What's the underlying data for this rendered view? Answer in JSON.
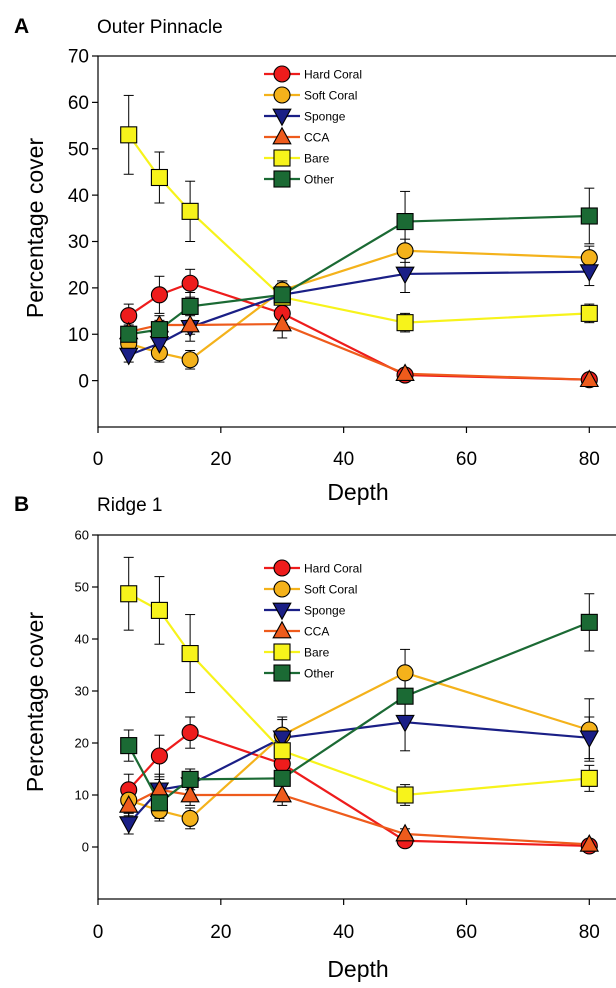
{
  "figure": {
    "panels": [
      {
        "letter": "A",
        "subtitle": "Outer Pinnacle"
      },
      {
        "letter": "B",
        "subtitle": "Ridge 1"
      }
    ]
  },
  "chart_data": [
    {
      "type": "line",
      "panel_label": "A",
      "title": "Outer Pinnacle",
      "xlabel": "Depth",
      "ylabel": "Percentage cover",
      "xlim": [
        0,
        85
      ],
      "ylim": [
        -10,
        70
      ],
      "xticks": [
        0,
        20,
        40,
        60,
        80
      ],
      "yticks": [
        0,
        10,
        20,
        30,
        40,
        50,
        60,
        70
      ],
      "x": [
        5,
        10,
        15,
        30,
        50,
        80
      ],
      "grid": false,
      "legend_position": "top-center",
      "series": [
        {
          "name": "Hard Coral",
          "marker": "circle",
          "color": "#ee1c1c",
          "line_color": "#ee1c1c",
          "values": [
            14,
            18.5,
            21,
            14.5,
            1.2,
            0.2
          ],
          "errors": [
            2.5,
            4,
            3,
            2,
            1,
            0.8
          ]
        },
        {
          "name": "Soft Coral",
          "marker": "circle",
          "color": "#f4b21b",
          "line_color": "#f4b21b",
          "values": [
            8,
            6,
            4.5,
            19.5,
            28,
            26.5
          ],
          "errors": [
            2,
            2,
            2,
            2,
            2.5,
            2.5
          ]
        },
        {
          "name": "Sponge",
          "marker": "triangle-down",
          "color": "#1a1f86",
          "line_color": "#1a1f86",
          "values": [
            5.5,
            8,
            11.5,
            18.5,
            23,
            23.5
          ],
          "errors": [
            1.5,
            2,
            3,
            2.5,
            4,
            3
          ]
        },
        {
          "name": "CCA",
          "marker": "triangle-up",
          "color": "#ee5b1c",
          "line_color": "#ee5b1c",
          "values": [
            10.5,
            12,
            12,
            12.2,
            1.5,
            0.2
          ],
          "errors": [
            2,
            2,
            2,
            3,
            1,
            0.5
          ]
        },
        {
          "name": "Bare",
          "marker": "square",
          "color": "#f7f31b",
          "line_color": "#f7f31b",
          "values": [
            53,
            43.8,
            36.5,
            18,
            12.5,
            14.5
          ],
          "errors": [
            8.5,
            5.5,
            6.5,
            3,
            2,
            2
          ]
        },
        {
          "name": "Other",
          "marker": "square",
          "color": "#1b6a34",
          "line_color": "#1b6a34",
          "values": [
            10,
            11,
            16,
            18.5,
            34.3,
            35.5
          ],
          "errors": [
            2,
            2,
            3,
            3,
            6.5,
            6
          ]
        }
      ]
    },
    {
      "type": "line",
      "panel_label": "B",
      "title": "Ridge 1",
      "xlabel": "Depth",
      "ylabel": "Percentage cover",
      "xlim": [
        0,
        85
      ],
      "ylim": [
        -10,
        60
      ],
      "xticks": [
        0,
        20,
        40,
        60,
        80
      ],
      "yticks": [
        0,
        10,
        20,
        30,
        40,
        50,
        60
      ],
      "x": [
        5,
        10,
        15,
        30,
        50,
        80
      ],
      "grid": false,
      "legend_position": "top-center",
      "series": [
        {
          "name": "Hard Coral",
          "marker": "circle",
          "color": "#ee1c1c",
          "line_color": "#ee1c1c",
          "values": [
            11,
            17.5,
            22,
            16,
            1.2,
            0.2
          ],
          "errors": [
            3,
            4,
            3,
            2,
            1,
            0.8
          ]
        },
        {
          "name": "Soft Coral",
          "marker": "circle",
          "color": "#f4b21b",
          "line_color": "#f4b21b",
          "values": [
            9,
            7,
            5.5,
            21.5,
            33.5,
            22.5
          ],
          "errors": [
            2.5,
            2,
            2,
            3,
            4.5,
            6
          ]
        },
        {
          "name": "Sponge",
          "marker": "triangle-down",
          "color": "#1a1f86",
          "line_color": "#1a1f86",
          "values": [
            4.5,
            11,
            12,
            21,
            24,
            21
          ],
          "errors": [
            2,
            3,
            3,
            4,
            5.5,
            4
          ]
        },
        {
          "name": "CCA",
          "marker": "triangle-up",
          "color": "#ee5b1c",
          "line_color": "#ee5b1c",
          "values": [
            8,
            11,
            10,
            10,
            2.5,
            0.5
          ],
          "errors": [
            2,
            2,
            2,
            2,
            1,
            0.5
          ]
        },
        {
          "name": "Bare",
          "marker": "square",
          "color": "#f7f31b",
          "line_color": "#f7f31b",
          "values": [
            48.7,
            45.5,
            37.2,
            18.5,
            10,
            13.2
          ],
          "errors": [
            7,
            6.5,
            7.5,
            3,
            2,
            2.5
          ]
        },
        {
          "name": "Other",
          "marker": "square",
          "color": "#1b6a34",
          "line_color": "#1b6a34",
          "values": [
            19.5,
            8.5,
            13,
            13.2,
            29,
            43.2
          ],
          "errors": [
            3,
            3,
            2,
            3,
            4.5,
            5.5
          ]
        }
      ]
    }
  ]
}
